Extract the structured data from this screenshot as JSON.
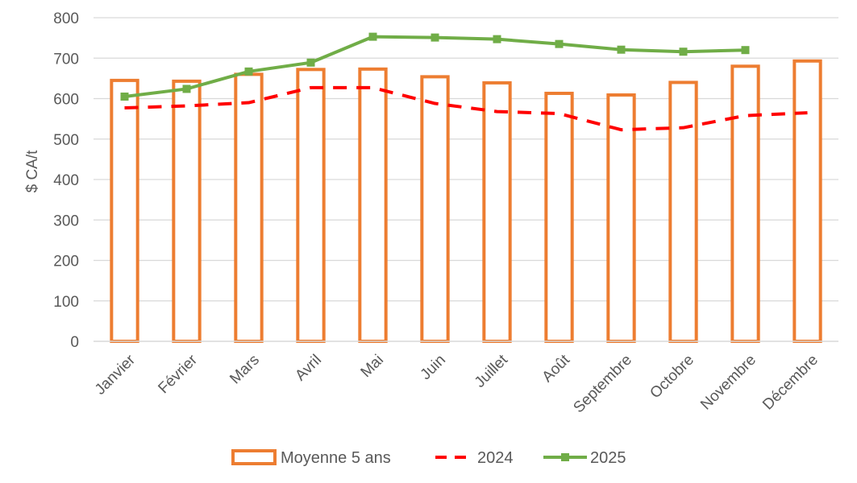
{
  "chart_data": {
    "type": "bar",
    "categories": [
      "Janvier",
      "Février",
      "Mars",
      "Avril",
      "Mai",
      "Juin",
      "Juillet",
      "Août",
      "Septembre",
      "Octobre",
      "Novembre",
      "Décembre"
    ],
    "ylabel": "$ CA/t",
    "ylim": [
      0,
      800
    ],
    "yticks": [
      0,
      100,
      200,
      300,
      400,
      500,
      600,
      700,
      800
    ],
    "grid": true,
    "legend_position": "bottom",
    "series": [
      {
        "name": "Moyenne 5 ans",
        "type": "bar",
        "style": "outline",
        "color": "#ED7D31",
        "values": [
          645,
          643,
          660,
          672,
          673,
          654,
          639,
          613,
          609,
          640,
          680,
          693
        ]
      },
      {
        "name": "2024",
        "type": "line",
        "style": "dashed",
        "color": "#FF0000",
        "values": [
          577,
          582,
          590,
          627,
          627,
          588,
          568,
          563,
          523,
          528,
          558,
          565
        ]
      },
      {
        "name": "2025",
        "type": "line",
        "style": "solid-square-markers",
        "color": "#70AD47",
        "values": [
          605,
          624,
          667,
          689,
          753,
          751,
          747,
          735,
          721,
          716,
          720,
          null
        ]
      }
    ]
  }
}
